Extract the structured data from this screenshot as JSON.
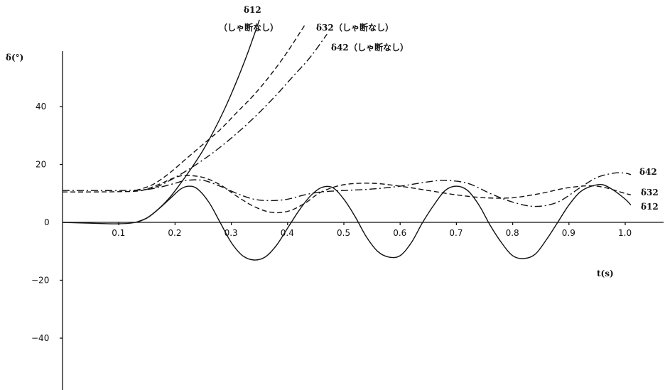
{
  "chart_data": {
    "type": "line",
    "xlabel": "t(s)",
    "ylabel": "δ(°)",
    "xlim": [
      0,
      1.05
    ],
    "ylim": [
      -57,
      57
    ],
    "xticks": [
      "0.1",
      "0.2",
      "0.3",
      "0.4",
      "0.5",
      "0.6",
      "0.7",
      "0.8",
      "0.9",
      "1.0"
    ],
    "yticks": [
      "40",
      "20",
      "0",
      "−20",
      "−40"
    ],
    "grid": false,
    "series": [
      {
        "name": "δ12",
        "style": "solid",
        "x": [
          0,
          0.05,
          0.1,
          0.13,
          0.15,
          0.17,
          0.19,
          0.21,
          0.225,
          0.24,
          0.26,
          0.28,
          0.3,
          0.32,
          0.34,
          0.36,
          0.38,
          0.4,
          0.42,
          0.44,
          0.46,
          0.48,
          0.5,
          0.52,
          0.54,
          0.56,
          0.58,
          0.6,
          0.62,
          0.64,
          0.66,
          0.68,
          0.7,
          0.72,
          0.74,
          0.76,
          0.78,
          0.8,
          0.82,
          0.84,
          0.86,
          0.88,
          0.9,
          0.92,
          0.94,
          0.96,
          0.98,
          1.0,
          1.01
        ],
        "y": [
          0,
          -0.3,
          -0.5,
          0,
          1.5,
          4.5,
          8,
          11.5,
          12.5,
          11.5,
          7,
          0,
          -7,
          -11.5,
          -13,
          -12,
          -8,
          -2,
          4,
          9,
          12,
          12,
          8,
          2,
          -5,
          -10,
          -12,
          -11.5,
          -7,
          0,
          6,
          11,
          12.5,
          11,
          6,
          -1,
          -7,
          -11.5,
          -12.5,
          -11,
          -6,
          0,
          6,
          10.5,
          12.5,
          13,
          11,
          8,
          6
        ]
      },
      {
        "name": "δ32",
        "style": "dashed",
        "x": [
          0,
          0.05,
          0.1,
          0.14,
          0.17,
          0.2,
          0.22,
          0.25,
          0.28,
          0.31,
          0.34,
          0.37,
          0.4,
          0.43,
          0.46,
          0.5,
          0.55,
          0.6,
          0.65,
          0.7,
          0.75,
          0.8,
          0.85,
          0.9,
          0.95,
          1.0,
          1.01
        ],
        "y": [
          10.5,
          10.5,
          10.6,
          11,
          13,
          15.5,
          16.2,
          15.5,
          13,
          9,
          5.5,
          3.5,
          3.8,
          6.5,
          10.5,
          13,
          13.5,
          12.5,
          11,
          9.5,
          8.5,
          8.5,
          10,
          12,
          12.5,
          10,
          9.5
        ]
      },
      {
        "name": "δ42",
        "style": "dashdot",
        "x": [
          0,
          0.05,
          0.1,
          0.14,
          0.17,
          0.2,
          0.22,
          0.25,
          0.28,
          0.31,
          0.34,
          0.37,
          0.4,
          0.43,
          0.46,
          0.5,
          0.55,
          0.6,
          0.65,
          0.68,
          0.72,
          0.76,
          0.8,
          0.84,
          0.88,
          0.92,
          0.95,
          0.98,
          1.0,
          1.01
        ],
        "y": [
          11,
          11,
          11,
          11.2,
          12,
          13.5,
          14.5,
          14.5,
          12.5,
          10,
          8,
          7.5,
          8,
          9.5,
          10.5,
          11,
          11.5,
          12.5,
          14,
          14.5,
          13.5,
          10,
          7,
          5.5,
          7,
          12,
          15.5,
          17,
          17,
          16.5
        ]
      },
      {
        "name": "δ12",
        "note": "（しゃ断なし）",
        "style": "solid",
        "x": [
          0.13,
          0.15,
          0.17,
          0.19,
          0.21,
          0.23,
          0.25,
          0.27,
          0.29,
          0.31,
          0.33,
          0.35
        ],
        "y": [
          0,
          1.5,
          4.5,
          8.5,
          13.5,
          19,
          25,
          32,
          40,
          49,
          59,
          70
        ]
      },
      {
        "name": "δ32",
        "note": "（しゃ断なし）",
        "style": "dashed",
        "x": [
          0.13,
          0.16,
          0.19,
          0.22,
          0.25,
          0.28,
          0.31,
          0.34,
          0.37,
          0.4,
          0.43
        ],
        "y": [
          11,
          13,
          17,
          22,
          27,
          32,
          38,
          44,
          51,
          59,
          68
        ]
      },
      {
        "name": "δ42",
        "note": "（しゃ断なし）",
        "style": "dashdot",
        "x": [
          0.14,
          0.17,
          0.2,
          0.23,
          0.26,
          0.29,
          0.32,
          0.35,
          0.38,
          0.41,
          0.44,
          0.47
        ],
        "y": [
          11,
          12.5,
          15.5,
          19,
          23,
          27.5,
          32.5,
          38,
          44,
          50.5,
          57,
          65
        ]
      }
    ],
    "annotations": [
      {
        "series": 0,
        "text": "δ12",
        "pos": "right-end"
      },
      {
        "series": 1,
        "text": "δ32",
        "pos": "right-end"
      },
      {
        "series": 2,
        "text": "δ42",
        "pos": "right-end"
      },
      {
        "series": 3,
        "text": "δ12",
        "pos": "top-end"
      },
      {
        "series": 3,
        "text": "（しゃ断なし）",
        "pos": "top-end"
      },
      {
        "series": 4,
        "text": "δ32",
        "pos": "top-end"
      },
      {
        "series": 4,
        "text": "（しゃ断なし）",
        "pos": "top-end"
      },
      {
        "series": 5,
        "text": "δ42",
        "pos": "top-end"
      },
      {
        "series": 5,
        "text": "（しゃ断なし）",
        "pos": "top-end"
      }
    ]
  }
}
